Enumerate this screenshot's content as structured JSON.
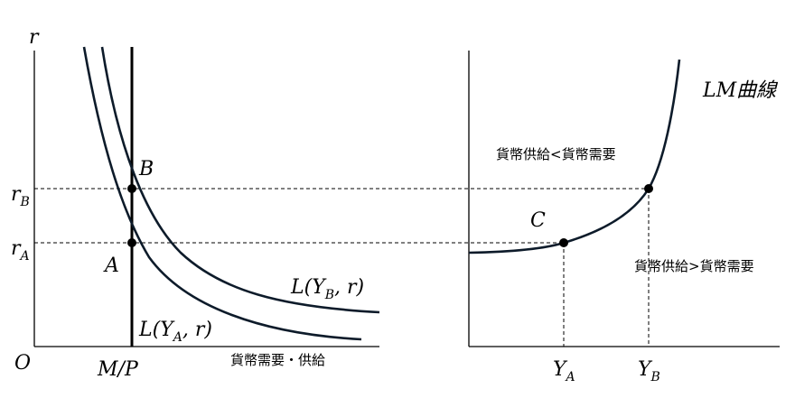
{
  "left_panel": {
    "y_axis_label": "r",
    "origin_label": "O",
    "x_tick_label": "M/P",
    "x_axis_label": "貨幣需要・供給",
    "y_tick_B": "r",
    "y_tick_B_sub": "B",
    "y_tick_A": "r",
    "y_tick_A_sub": "A",
    "point_B": "B",
    "point_A": "A",
    "curve_B_label": "L(Y",
    "curve_B_sub": "B",
    "curve_B_tail": ", r)",
    "curve_A_label": "L(Y",
    "curve_A_sub": "A",
    "curve_A_tail": ", r)"
  },
  "right_panel": {
    "lm_label": "LM曲線",
    "upper_region_label": "貨幣供給<貨幣需要",
    "lower_region_label": "貨幣供給>貨幣需要",
    "point_C": "C",
    "x_tick_A": "Y",
    "x_tick_A_sub": "A",
    "x_tick_B": "Y",
    "x_tick_B_sub": "B"
  },
  "colors": {
    "line": "#000000",
    "curve": "#0d1b2a",
    "background": "#ffffff"
  }
}
